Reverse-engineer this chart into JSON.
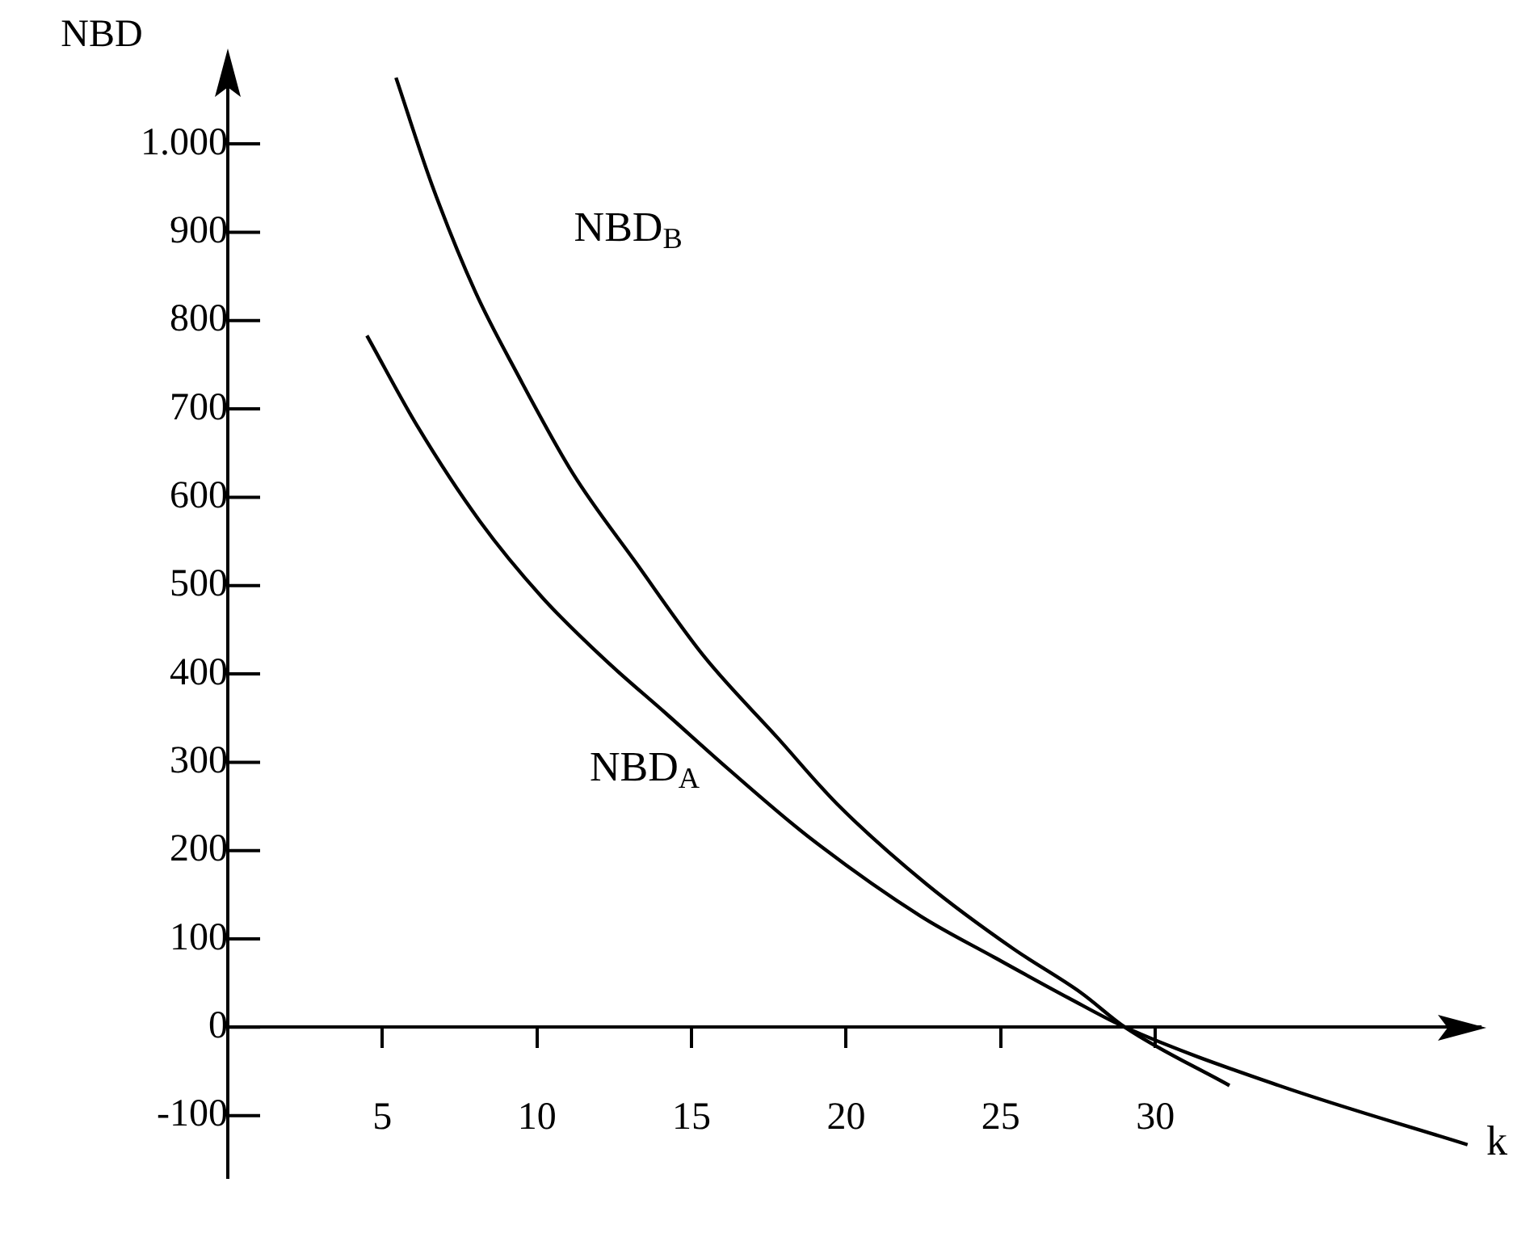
{
  "chart_data": {
    "type": "line",
    "xlabel": "k",
    "ylabel": "NBD",
    "xlim": [
      0,
      40.5
    ],
    "ylim": [
      -170,
      1100
    ],
    "xticks": [
      5,
      10,
      15,
      20,
      25,
      30
    ],
    "yticks": [
      -100,
      0,
      100,
      200,
      300,
      400,
      500,
      600,
      700,
      800,
      900,
      {
        "value": 1000,
        "label": "1.000"
      }
    ],
    "grid": false,
    "legend": false,
    "marker": "none",
    "line_style": "solid",
    "series": [
      {
        "name": "NBD$_{B}$",
        "color": "#000000",
        "x": [
          5.44,
          6.6,
          8.0,
          9.36,
          11.16,
          13.2,
          15.4,
          17.8,
          19.7,
          22.6,
          25.4,
          27.6,
          29.02,
          32.4
        ],
        "values": [
          1075,
          954,
          833,
          740,
          627,
          526,
          420,
          327,
          253,
          162,
          89,
          39,
          0,
          -66
        ]
      },
      {
        "name": "NBD$_{A}$",
        "color": "#000000",
        "x": [
          4.5,
          6.14,
          8.15,
          10.16,
          12.17,
          14.18,
          16.2,
          18.77,
          22.4,
          24.8,
          27.2,
          29.02,
          34.0,
          40.1
        ],
        "values": [
          783,
          680,
          573,
          487,
          417,
          355,
          292,
          216,
          126,
          79,
          33,
          0,
          -66,
          -133
        ]
      }
    ]
  }
}
